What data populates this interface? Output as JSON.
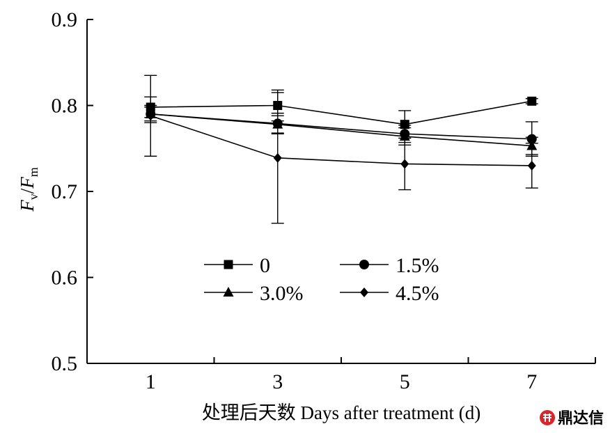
{
  "chart_data": {
    "type": "line",
    "title": "",
    "xlabel": "处理后天数  Days after treatment (d)",
    "ylabel": {
      "main_1": "F",
      "sub_1": "v",
      "sep": "/",
      "main_2": "F",
      "sub_2": "m"
    },
    "x": [
      1,
      3,
      5,
      7
    ],
    "x_tick_labels": [
      "1",
      "3",
      "5",
      "7"
    ],
    "xlim": [
      0,
      8
    ],
    "ylim": [
      0.5,
      0.9
    ],
    "y_ticks": [
      0.5,
      0.6,
      0.7,
      0.8,
      0.9
    ],
    "y_tick_labels": [
      "0.5",
      "0.6",
      "0.7",
      "0.8",
      "0.9"
    ],
    "grid": false,
    "legend_position": "center-left",
    "series": [
      {
        "name": "0",
        "marker": "square",
        "values": [
          0.798,
          0.8,
          0.778,
          0.805
        ],
        "errors": [
          0.012,
          0.018,
          0.016,
          0.003
        ]
      },
      {
        "name": "1.5%",
        "marker": "circle",
        "values": [
          0.79,
          0.779,
          0.767,
          0.761
        ],
        "errors": [
          0.01,
          0.012,
          0.01,
          0.02
        ]
      },
      {
        "name": "3.0%",
        "marker": "triangle",
        "values": [
          0.79,
          0.778,
          0.764,
          0.753
        ],
        "errors": [
          0.008,
          0.01,
          0.01,
          0.01
        ]
      },
      {
        "name": "4.5%",
        "marker": "diamond",
        "values": [
          0.788,
          0.739,
          0.732,
          0.73
        ],
        "errors": [
          0.047,
          0.076,
          0.03,
          0.026
        ]
      }
    ]
  },
  "watermark": {
    "text": "鼎达信",
    "color": "#d6262e"
  }
}
